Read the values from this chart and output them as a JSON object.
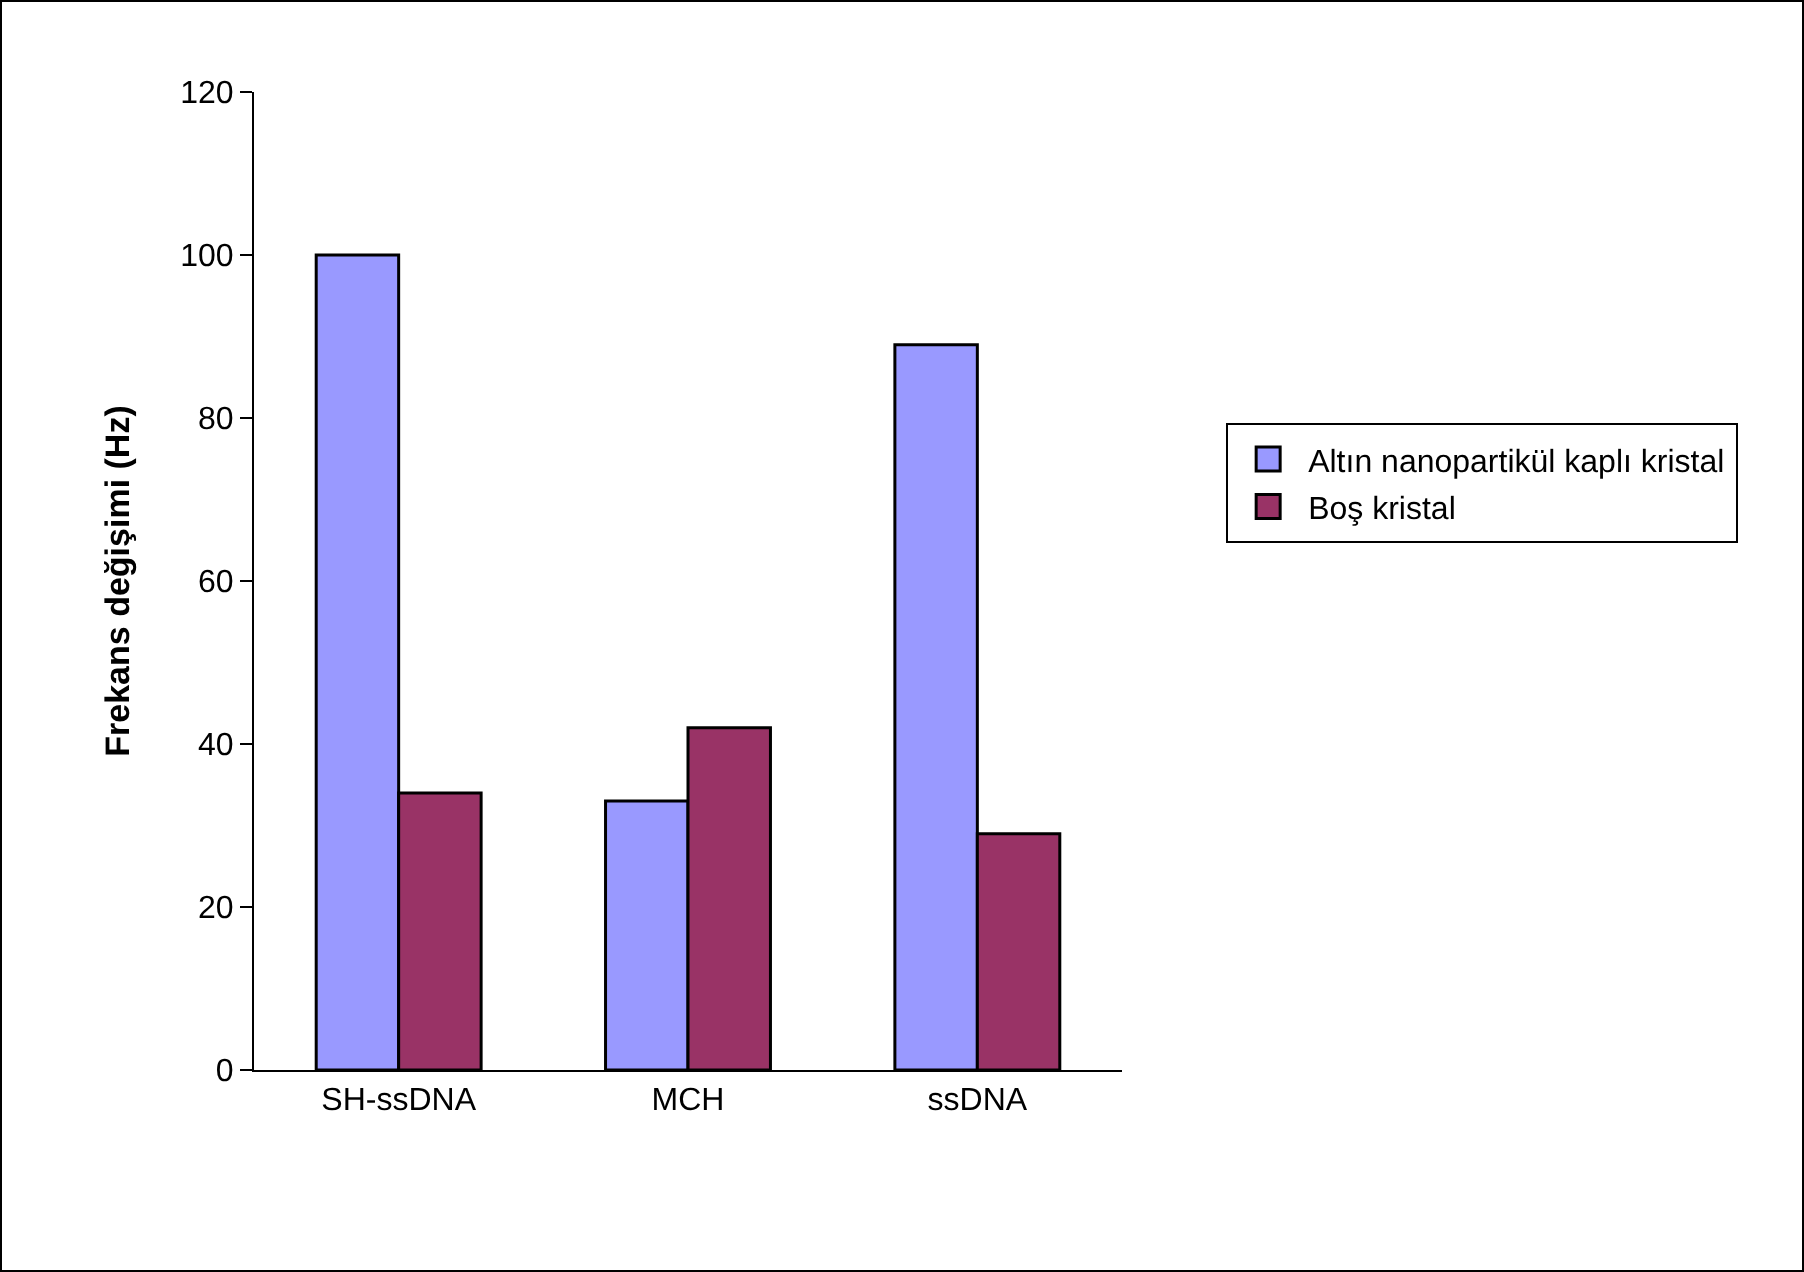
{
  "chart_data": {
    "type": "bar",
    "ylabel": "Frekans değişimi (Hz)",
    "categories": [
      "SH-ssDNA",
      "MCH",
      "ssDNA"
    ],
    "series": [
      {
        "name": "Altın nanopartikül kaplı kristal",
        "color": "#9999ff",
        "values": [
          100,
          33,
          89
        ]
      },
      {
        "name": "Boş kristal",
        "color": "#993366",
        "values": [
          34,
          42,
          29
        ]
      }
    ],
    "ylim": [
      0,
      120
    ],
    "yticks": [
      0,
      20,
      40,
      60,
      80,
      100,
      120
    ],
    "grid": false,
    "legend": "right"
  }
}
